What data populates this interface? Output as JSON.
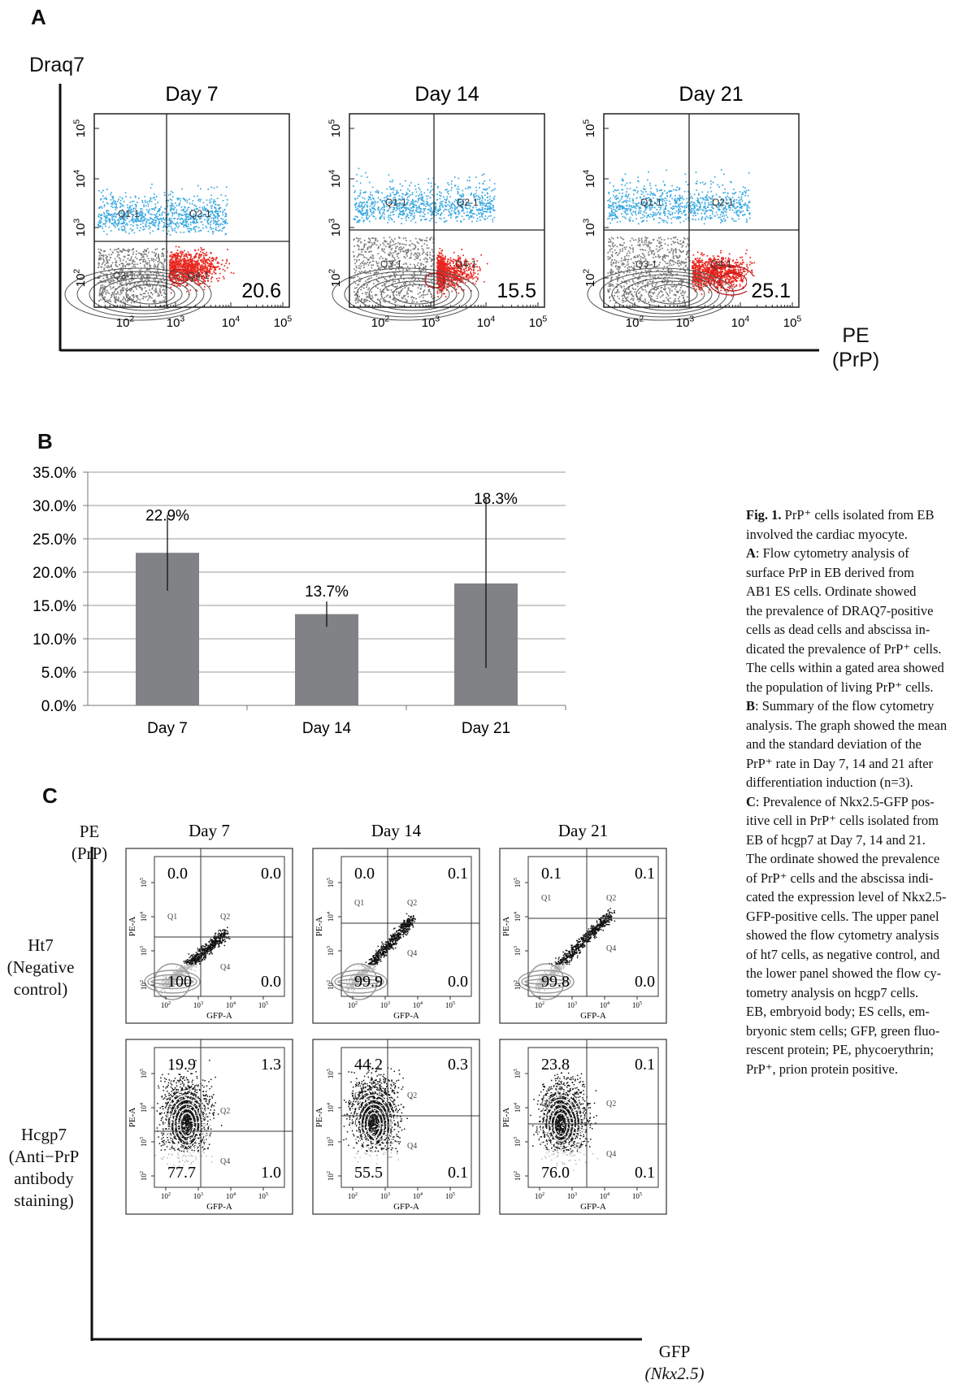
{
  "panel_a": {
    "letter": "A",
    "y_axis_label": "Draq7",
    "x_axis_label_line1": "PE",
    "x_axis_label_line2": "(PrP)",
    "plots": [
      {
        "title": "Day 7",
        "value": "20.6"
      },
      {
        "title": "Day 14",
        "value": "15.5"
      },
      {
        "title": "Day 21",
        "value": "25.1"
      }
    ],
    "gate_labels": {
      "q1": "Q1-1",
      "q2": "Q2-1",
      "q3": "Q3-1",
      "q4": "Q4-1"
    },
    "tick_exponents": [
      "2",
      "3",
      "4",
      "5"
    ],
    "colors": {
      "dead": "#3aa8e0",
      "live_prp": "#e8261f",
      "live_neg": "#7a7a7a"
    }
  },
  "panel_b": {
    "letter": "B",
    "chart_data": {
      "type": "bar",
      "categories": [
        "Day 7",
        "Day 14",
        "Day 21"
      ],
      "values": [
        22.9,
        13.7,
        18.3
      ],
      "error_low": [
        17.2,
        11.8,
        5.6
      ],
      "error_high": [
        28.6,
        15.6,
        31.0
      ],
      "data_labels": [
        "22.9%",
        "13.7%",
        "18.3%"
      ],
      "ylim": [
        0,
        35
      ],
      "yticks": [
        "0.0%",
        "5.0%",
        "10.0%",
        "15.0%",
        "20.0%",
        "25.0%",
        "30.0%",
        "35.0%"
      ],
      "grid": true,
      "bar_color": "#808285"
    }
  },
  "panel_c": {
    "letter": "C",
    "y_axis_label_line1": "PE",
    "y_axis_label_line2": "(PrP)",
    "x_axis_label_line1": "GFP",
    "x_axis_label_line2": "(Nkx2.5)",
    "columns": [
      "Day 7",
      "Day 14",
      "Day 21"
    ],
    "rows": [
      {
        "lines": [
          "Ht7",
          "(Negative",
          "control)"
        ]
      },
      {
        "lines": [
          "Hcgp7",
          "(Anti−PrP",
          "antibody",
          "staining)"
        ]
      }
    ],
    "plot_axis_x": "GFP-A",
    "plot_axis_y": "PE-A",
    "quad_labels": [
      "Q1",
      "Q2",
      "Q4"
    ],
    "values": [
      [
        {
          "ul": "0.0",
          "ur": "0.0",
          "ll": "100",
          "lr": "0.0"
        },
        {
          "ul": "0.0",
          "ur": "0.1",
          "ll": "99.9",
          "lr": "0.0"
        },
        {
          "ul": "0.1",
          "ur": "0.1",
          "ll": "99.8",
          "lr": "0.0"
        }
      ],
      [
        {
          "ul": "19.9",
          "ur": "1.3",
          "ll": "77.7",
          "lr": "1.0"
        },
        {
          "ul": "44.2",
          "ur": "0.3",
          "ll": "55.5",
          "lr": "0.1"
        },
        {
          "ul": "23.8",
          "ur": "0.1",
          "ll": "76.0",
          "lr": "0.1"
        }
      ]
    ]
  },
  "caption": {
    "fig_label": "Fig. 1.",
    "lines": [
      "PrP⁺ cells isolated from EB",
      "involved the cardiac myocyte.",
      "A: Flow cytometry analysis of",
      "surface PrP in EB derived from",
      "AB1 ES cells. Ordinate showed",
      "the prevalence of DRAQ7-positive",
      "cells as dead cells and abscissa in-",
      "dicated the prevalence of PrP⁺ cells.",
      "The cells within a gated area showed",
      "the population of living PrP⁺ cells.",
      "B: Summary of the flow cytometry",
      "analysis. The graph showed the mean",
      "and the standard deviation of the",
      "PrP⁺ rate in Day 7, 14 and 21 after",
      "differentiation induction (n=3).",
      "C: Prevalence of Nkx2.5-GFP pos-",
      "itive cell in PrP⁺ cells isolated from",
      "EB of hcgp7 at Day 7, 14 and 21.",
      "The ordinate showed the prevalence",
      "of PrP⁺ cells and the abscissa indi-",
      "cated the expression level of Nkx2.5-",
      "GFP-positive cells. The upper panel",
      "showed the flow cytometry analysis",
      "of ht7 cells, as negative control, and",
      "the lower panel showed the flow cy-",
      "tometry analysis on hcgp7 cells.",
      "EB, embryoid body; ES cells, em-",
      "bryonic stem cells; GFP, green fluo-",
      "rescent protein; PE, phycoerythrin;",
      "PrP⁺, prion protein positive."
    ]
  }
}
